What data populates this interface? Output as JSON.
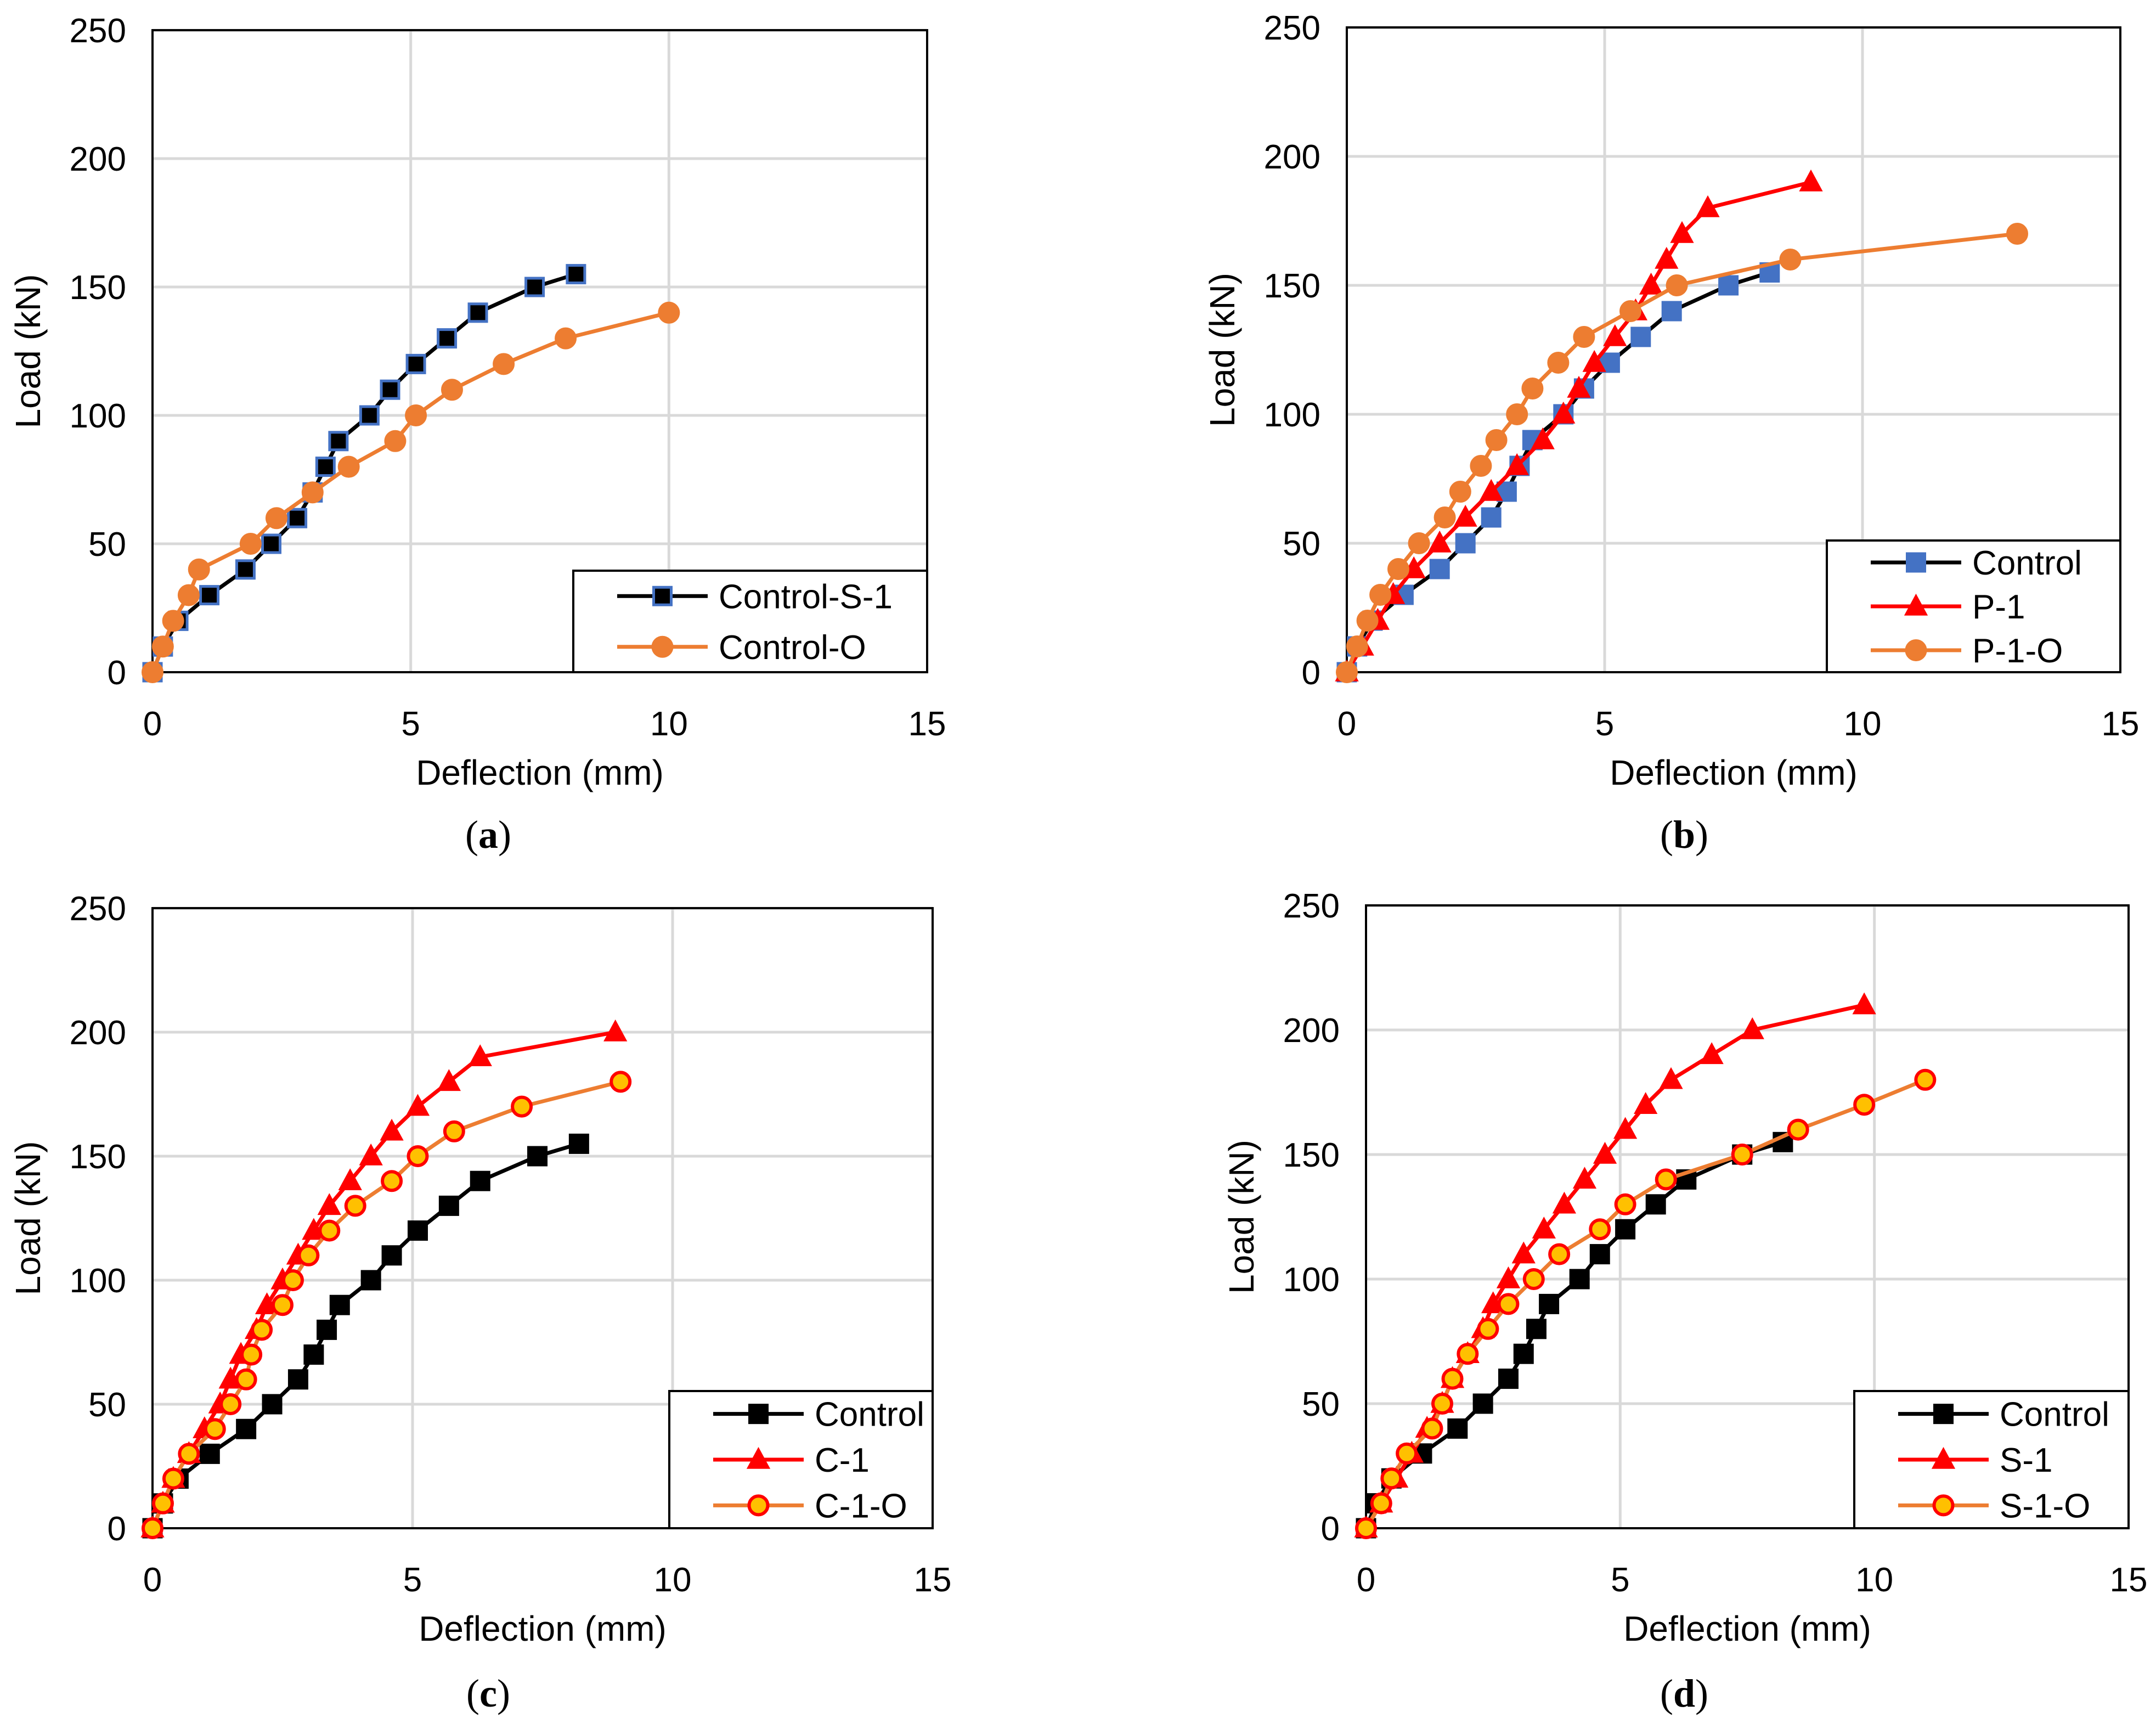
{
  "chart_data": [
    {
      "type": "line",
      "panel": "a",
      "caption_label": "a",
      "xlabel": "Deflection  (mm)",
      "ylabel": "Load  (kN)",
      "xlim": [
        0,
        15
      ],
      "ylim": [
        0,
        250
      ],
      "xticks": [
        0,
        5,
        10,
        15
      ],
      "yticks": [
        0,
        50,
        100,
        150,
        200,
        250
      ],
      "grid": true,
      "legend": "bottom-right",
      "series": [
        {
          "name": "Control-S-1",
          "line_color": "#000000",
          "marker": "square",
          "marker_fill": "#000000",
          "marker_edge": "#4472C4",
          "x": [
            0,
            0.2,
            0.5,
            1.1,
            1.8,
            2.3,
            2.8,
            3.1,
            3.35,
            3.6,
            4.2,
            4.6,
            5.1,
            5.7,
            6.3,
            7.4,
            8.2
          ],
          "y": [
            0,
            10,
            20,
            30,
            40,
            50,
            60,
            70,
            80,
            90,
            100,
            110,
            120,
            130,
            140,
            150,
            155
          ]
        },
        {
          "name": "Control-O",
          "line_color": "#ED7D31",
          "marker": "circle",
          "marker_fill": "#ED7D31",
          "marker_edge": "#ED7D31",
          "x": [
            0,
            0.2,
            0.4,
            0.7,
            0.9,
            1.9,
            2.4,
            3.1,
            3.8,
            4.7,
            5.1,
            5.8,
            6.8,
            8.0,
            10.0
          ],
          "y": [
            0,
            10,
            20,
            30,
            40,
            50,
            60,
            70,
            80,
            90,
            100,
            110,
            120,
            130,
            140
          ]
        }
      ]
    },
    {
      "type": "line",
      "panel": "b",
      "caption_label": "b",
      "xlabel": "Deflection  (mm)",
      "ylabel": "Load  (kN)",
      "xlim": [
        0,
        15
      ],
      "ylim": [
        0,
        250
      ],
      "xticks": [
        0,
        5,
        10,
        15
      ],
      "yticks": [
        0,
        50,
        100,
        150,
        200,
        250
      ],
      "grid": true,
      "legend": "bottom-right",
      "series": [
        {
          "name": "Control",
          "line_color": "#000000",
          "marker": "square",
          "marker_fill": "#4472C4",
          "marker_edge": "#4472C4",
          "x": [
            0,
            0.2,
            0.5,
            1.1,
            1.8,
            2.3,
            2.8,
            3.1,
            3.35,
            3.6,
            4.2,
            4.6,
            5.1,
            5.7,
            6.3,
            7.4,
            8.2
          ],
          "y": [
            0,
            10,
            20,
            30,
            40,
            50,
            60,
            70,
            80,
            90,
            100,
            110,
            120,
            130,
            140,
            150,
            155
          ]
        },
        {
          "name": "P-1",
          "line_color": "#FF0000",
          "marker": "triangle",
          "marker_fill": "#FF0000",
          "marker_edge": "#FF0000",
          "x": [
            0,
            0.3,
            0.6,
            0.9,
            1.3,
            1.8,
            2.3,
            2.8,
            3.3,
            3.8,
            4.2,
            4.5,
            4.8,
            5.2,
            5.6,
            5.9,
            6.2,
            6.5,
            7.0,
            9.0
          ],
          "y": [
            0,
            10,
            20,
            30,
            40,
            50,
            60,
            70,
            80,
            90,
            100,
            110,
            120,
            130,
            140,
            150,
            160,
            170,
            180,
            190
          ]
        },
        {
          "name": "P-1-O",
          "line_color": "#ED7D31",
          "marker": "circle",
          "marker_fill": "#ED7D31",
          "marker_edge": "#ED7D31",
          "x": [
            0,
            0.2,
            0.4,
            0.65,
            1.0,
            1.4,
            1.9,
            2.2,
            2.6,
            2.9,
            3.3,
            3.6,
            4.1,
            4.6,
            5.5,
            6.4,
            8.6,
            13.0
          ],
          "y": [
            0,
            10,
            20,
            30,
            40,
            50,
            60,
            70,
            80,
            90,
            100,
            110,
            120,
            130,
            140,
            150,
            160,
            170
          ]
        }
      ]
    },
    {
      "type": "line",
      "panel": "c",
      "caption_label": "c",
      "xlabel": "Deflection  (mm)",
      "ylabel": "Load  (kN)",
      "xlim": [
        0,
        15
      ],
      "ylim": [
        0,
        250
      ],
      "xticks": [
        0,
        5,
        10,
        15
      ],
      "yticks": [
        0,
        50,
        100,
        150,
        200,
        250
      ],
      "grid": true,
      "legend": "bottom-right",
      "series": [
        {
          "name": "Control",
          "line_color": "#000000",
          "marker": "square",
          "marker_fill": "#000000",
          "marker_edge": "#000000",
          "x": [
            0,
            0.2,
            0.5,
            1.1,
            1.8,
            2.3,
            2.8,
            3.1,
            3.35,
            3.6,
            4.2,
            4.6,
            5.1,
            5.7,
            6.3,
            7.4,
            8.2
          ],
          "y": [
            0,
            10,
            20,
            30,
            40,
            50,
            60,
            70,
            80,
            90,
            100,
            110,
            120,
            130,
            140,
            150,
            155
          ]
        },
        {
          "name": "C-1",
          "line_color": "#FF0000",
          "marker": "triangle",
          "marker_fill": "#FF0000",
          "marker_edge": "#FF0000",
          "x": [
            0,
            0.2,
            0.4,
            0.7,
            1.0,
            1.3,
            1.5,
            1.7,
            2.0,
            2.2,
            2.5,
            2.8,
            3.1,
            3.4,
            3.8,
            4.2,
            4.6,
            5.1,
            5.7,
            6.3,
            8.9
          ],
          "y": [
            0,
            10,
            20,
            30,
            40,
            50,
            60,
            70,
            80,
            90,
            100,
            110,
            120,
            130,
            140,
            150,
            160,
            170,
            180,
            190,
            200
          ]
        },
        {
          "name": "C-1-O",
          "line_color": "#ED7D31",
          "marker": "ring",
          "marker_fill": "#FFC000",
          "marker_edge": "#FF0000",
          "x": [
            0,
            0.2,
            0.4,
            0.7,
            1.2,
            1.5,
            1.8,
            1.9,
            2.1,
            2.5,
            2.7,
            3.0,
            3.4,
            3.9,
            4.6,
            5.1,
            5.8,
            7.1,
            9.0
          ],
          "y": [
            0,
            10,
            20,
            30,
            40,
            50,
            60,
            70,
            80,
            90,
            100,
            110,
            120,
            130,
            140,
            150,
            160,
            170,
            180
          ]
        }
      ]
    },
    {
      "type": "line",
      "panel": "d",
      "caption_label": "d",
      "xlabel": "Deflection  (mm)",
      "ylabel": "Load  (kN)",
      "xlim": [
        0,
        15
      ],
      "ylim": [
        0,
        250
      ],
      "xticks": [
        0,
        5,
        10,
        15
      ],
      "yticks": [
        0,
        50,
        100,
        150,
        200,
        250
      ],
      "grid": true,
      "legend": "bottom-right",
      "series": [
        {
          "name": "Control",
          "line_color": "#000000",
          "marker": "square",
          "marker_fill": "#000000",
          "marker_edge": "#000000",
          "x": [
            0,
            0.2,
            0.5,
            1.1,
            1.8,
            2.3,
            2.8,
            3.1,
            3.35,
            3.6,
            4.2,
            4.6,
            5.1,
            5.7,
            6.3,
            7.4,
            8.2
          ],
          "y": [
            0,
            10,
            20,
            30,
            40,
            50,
            60,
            70,
            80,
            90,
            100,
            110,
            120,
            130,
            140,
            150,
            155
          ]
        },
        {
          "name": "S-1",
          "line_color": "#FF0000",
          "marker": "triangle",
          "marker_fill": "#FF0000",
          "marker_edge": "#FF0000",
          "x": [
            0,
            0.3,
            0.6,
            0.9,
            1.2,
            1.5,
            1.7,
            2.0,
            2.3,
            2.5,
            2.8,
            3.1,
            3.5,
            3.9,
            4.3,
            4.7,
            5.1,
            5.5,
            6.0,
            6.8,
            7.6,
            9.8
          ],
          "y": [
            0,
            10,
            20,
            30,
            40,
            50,
            60,
            70,
            80,
            90,
            100,
            110,
            120,
            130,
            140,
            150,
            160,
            170,
            180,
            190,
            200,
            210
          ]
        },
        {
          "name": "S-1-O",
          "line_color": "#ED7D31",
          "marker": "ring",
          "marker_fill": "#FFC000",
          "marker_edge": "#FF0000",
          "x": [
            0,
            0.3,
            0.5,
            0.8,
            1.3,
            1.5,
            1.7,
            2.0,
            2.4,
            2.8,
            3.3,
            3.8,
            4.6,
            5.1,
            5.9,
            7.4,
            8.5,
            9.8,
            11.0
          ],
          "y": [
            0,
            10,
            20,
            30,
            40,
            50,
            60,
            70,
            80,
            90,
            100,
            110,
            120,
            130,
            140,
            150,
            160,
            170,
            180
          ]
        }
      ]
    }
  ]
}
